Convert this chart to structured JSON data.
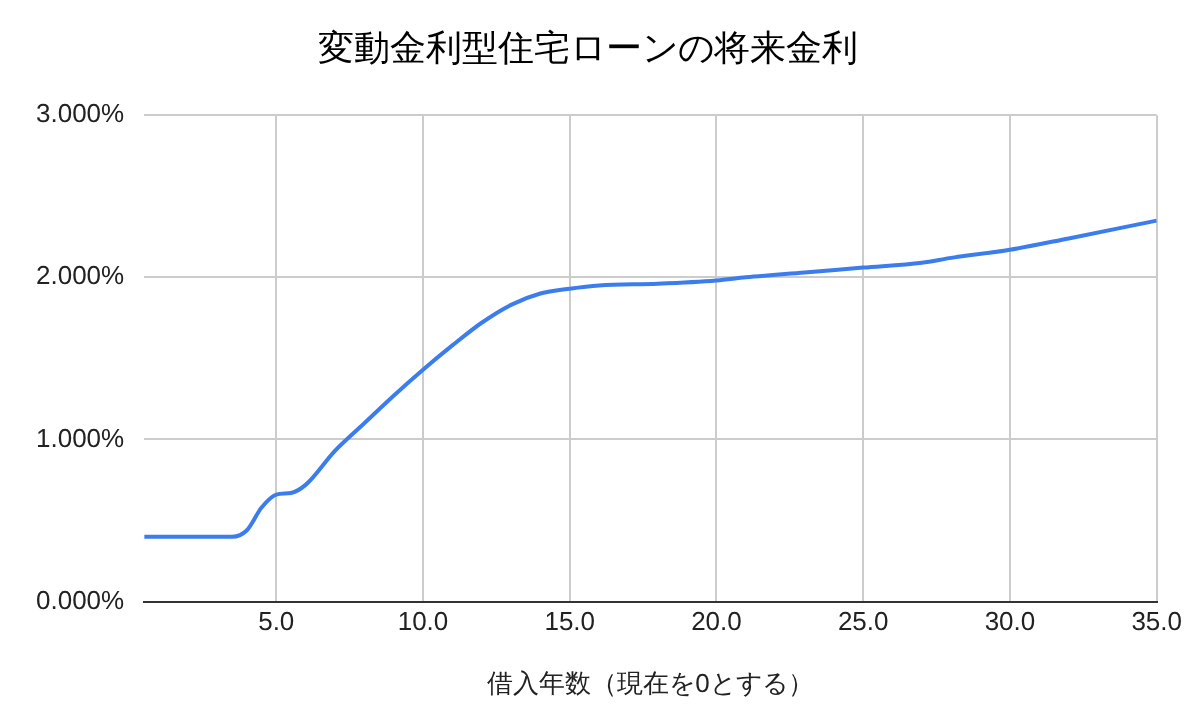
{
  "chart_data": {
    "type": "line",
    "title": "変動金利型住宅ローンの将来金利",
    "xlabel": "借入年数（現在を0とする）",
    "x": [
      0.5,
      1,
      2,
      3,
      3.5,
      4,
      4.5,
      5,
      5.5,
      6,
      7,
      8,
      9,
      10,
      11,
      12,
      13,
      14,
      15,
      16,
      18,
      20,
      21,
      23,
      25,
      27,
      28,
      30,
      32,
      35
    ],
    "series": [
      {
        "color": "#3b7ded",
        "values": [
          0.4,
          0.4,
          0.4,
          0.4,
          0.4,
          0.44,
          0.58,
          0.66,
          0.67,
          0.72,
          0.93,
          1.1,
          1.27,
          1.43,
          1.58,
          1.72,
          1.83,
          1.9,
          1.93,
          1.95,
          1.96,
          1.98,
          2.0,
          2.03,
          2.06,
          2.09,
          2.12,
          2.17,
          2.24,
          2.35
        ]
      }
    ],
    "xlim": [
      0.5,
      35
    ],
    "xticks": [
      {
        "value": 5,
        "label": "5.0"
      },
      {
        "value": 10,
        "label": "10.0"
      },
      {
        "value": 15,
        "label": "15.0"
      },
      {
        "value": 20,
        "label": "20.0"
      },
      {
        "value": 25,
        "label": "25.0"
      },
      {
        "value": 30,
        "label": "30.0"
      },
      {
        "value": 35,
        "label": "35.0"
      }
    ],
    "ylim": [
      0,
      3
    ],
    "yticks": [
      {
        "value": 0,
        "label": "0.000%"
      },
      {
        "value": 1,
        "label": "1.000%"
      },
      {
        "value": 2,
        "label": "2.000%"
      },
      {
        "value": 3,
        "label": "3.000%"
      }
    ],
    "grid": true,
    "marker": "none",
    "line_style": "solid"
  }
}
